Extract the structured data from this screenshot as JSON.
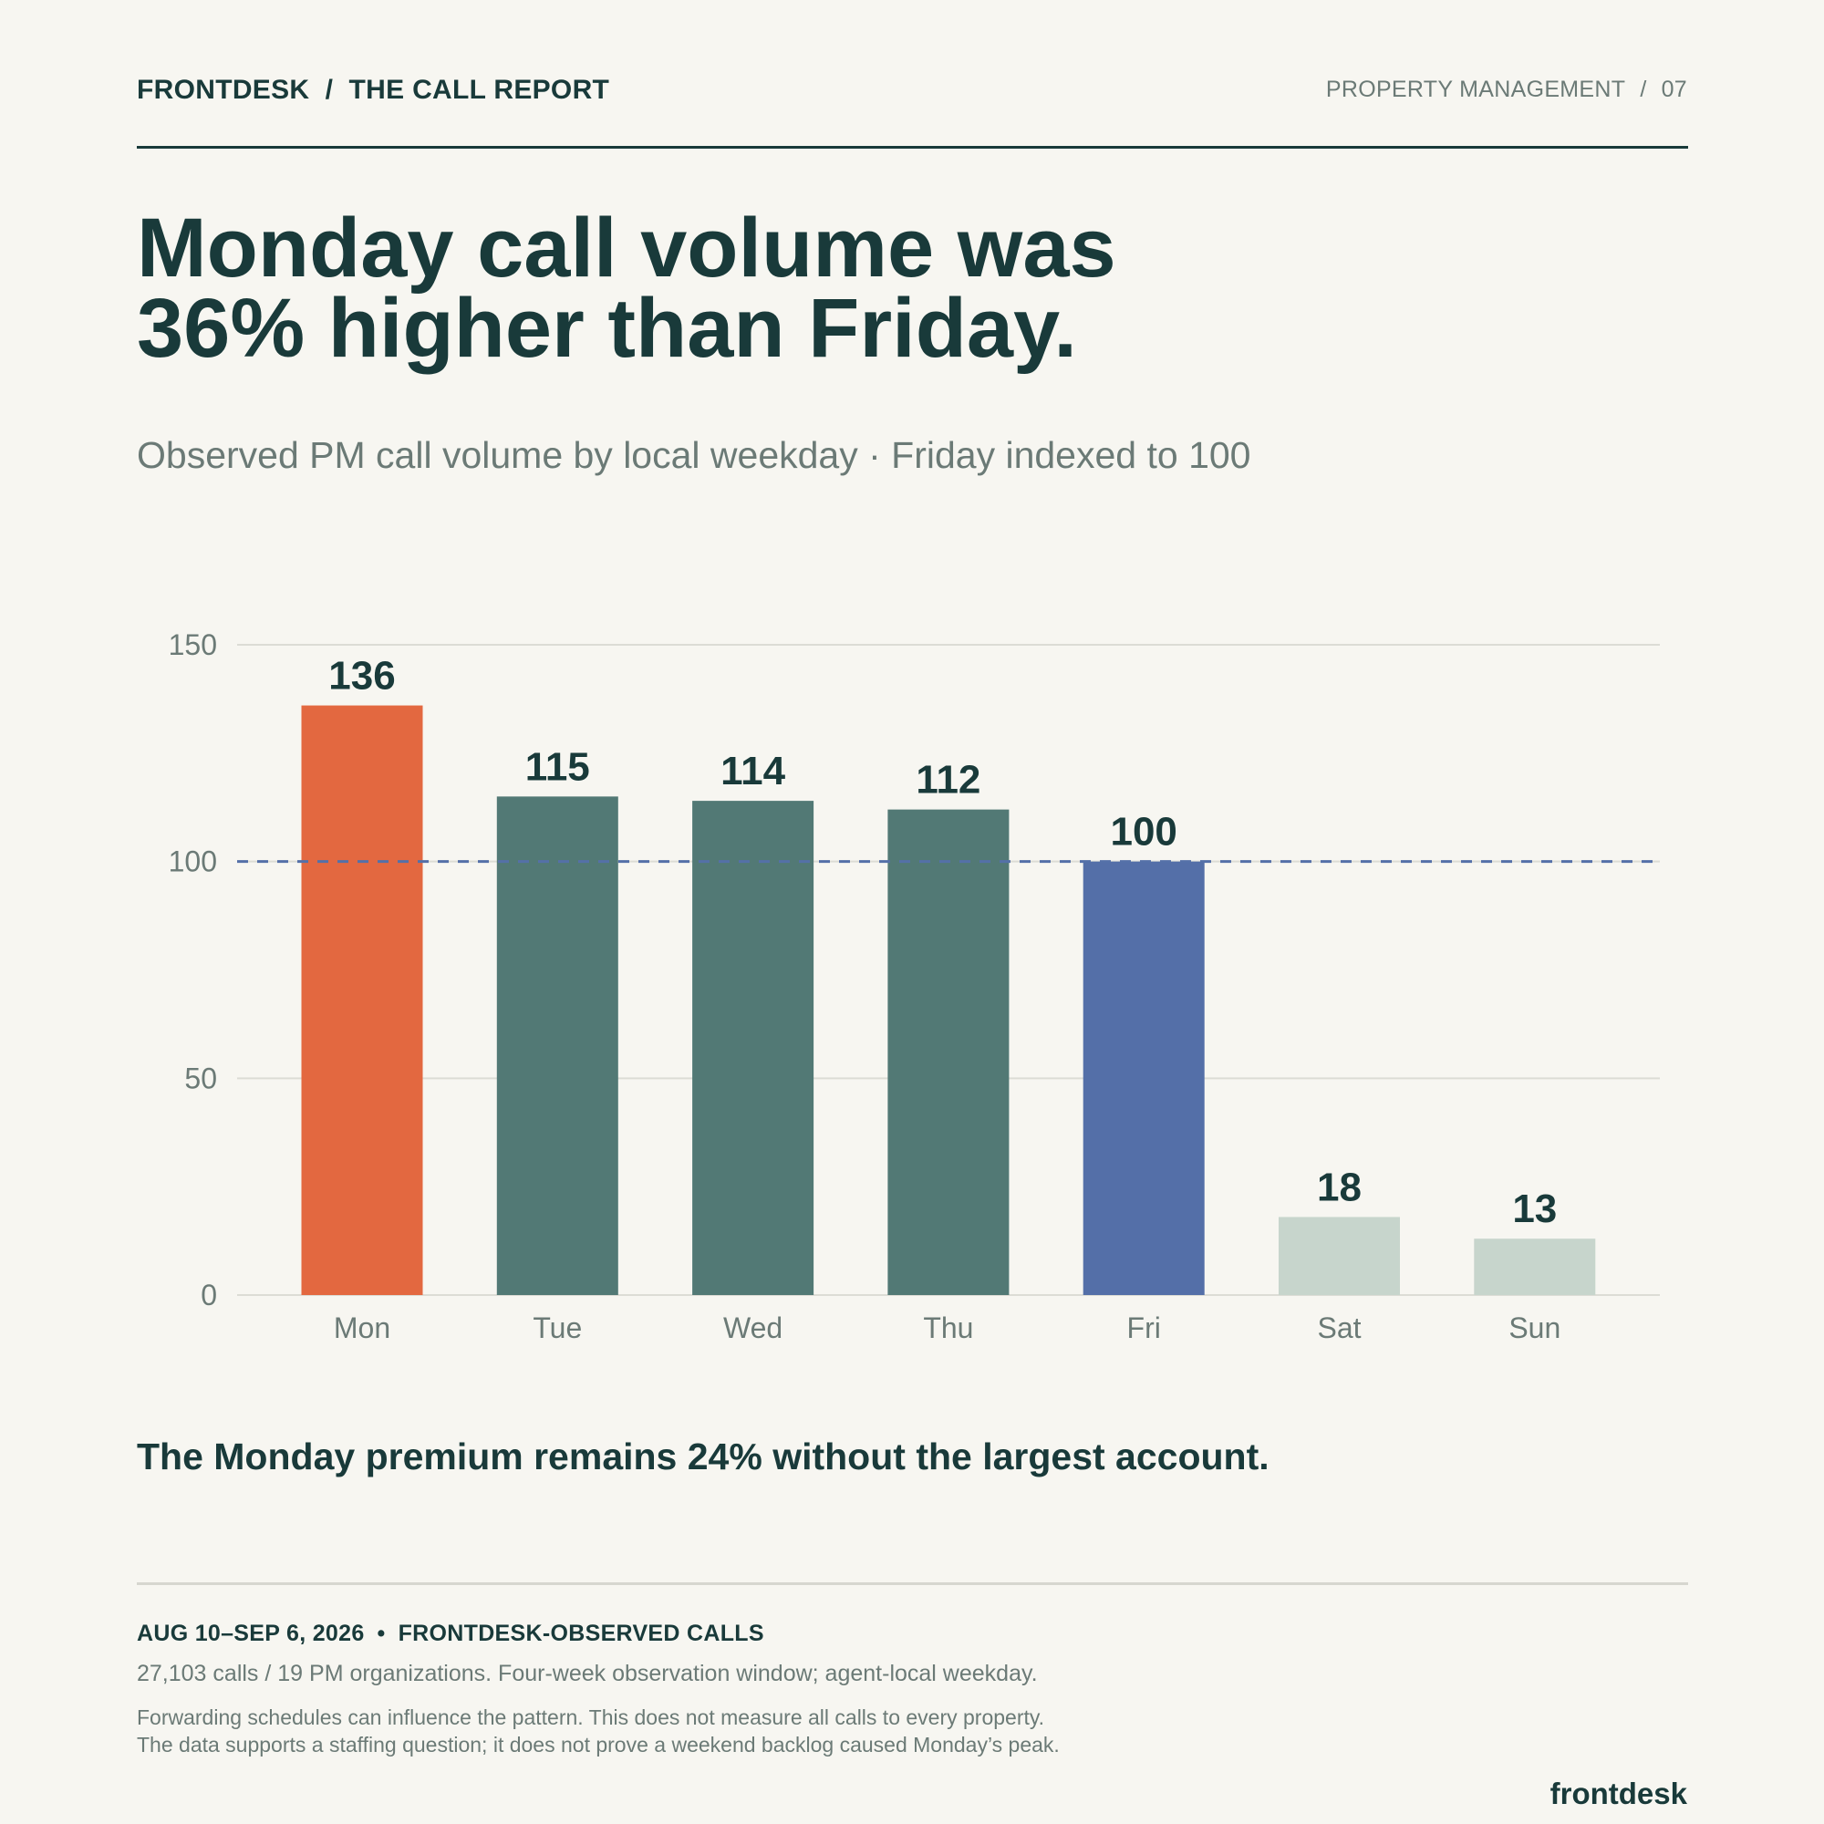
{
  "header": {
    "brand": "FRONTDESK  /  THE CALL REPORT",
    "section": "PROPERTY MANAGEMENT",
    "section_sep": "/",
    "page_number": "07"
  },
  "headline": {
    "line1": "Monday call volume was",
    "line2": "36% higher than Friday."
  },
  "subtitle": "Observed PM call volume by local weekday · Friday indexed to 100",
  "chart_data": {
    "type": "bar",
    "title": "",
    "xlabel": "",
    "ylabel": "",
    "categories": [
      "Mon",
      "Tue",
      "Wed",
      "Thu",
      "Fri",
      "Sat",
      "Sun"
    ],
    "values": [
      136,
      115,
      114,
      112,
      100,
      18,
      13
    ],
    "data_labels": [
      "136",
      "115",
      "114",
      "112",
      "100",
      "18",
      "13"
    ],
    "bar_colors": [
      "#e36840",
      "#527975",
      "#527975",
      "#527975",
      "#546fa8",
      "#c7d5cc",
      "#c7d5cc"
    ],
    "ylim": [
      0,
      150
    ],
    "yticks": [
      0,
      50,
      100,
      150
    ],
    "ytick_labels": [
      "0",
      "50",
      "100",
      "150"
    ],
    "reference_line": {
      "value": 100,
      "style": "dashed",
      "color": "#5470a8"
    },
    "grid": true,
    "legend": "none"
  },
  "takeaway": "The Monday premium remains 24% without the largest account.",
  "footer": {
    "period": "AUG 10–SEP 6, 2026",
    "bullet": "•",
    "source": "FRONTDESK-OBSERVED CALLS",
    "sample": "27,103 calls / 19 PM organizations. Four-week observation window; agent-local weekday.",
    "note1": "Forwarding schedules can influence the pattern. This does not measure all calls to every property.",
    "note2": "The data supports a staffing question; it does not prove a weekend backlog caused Monday’s peak.",
    "logo": "frontdesk"
  }
}
